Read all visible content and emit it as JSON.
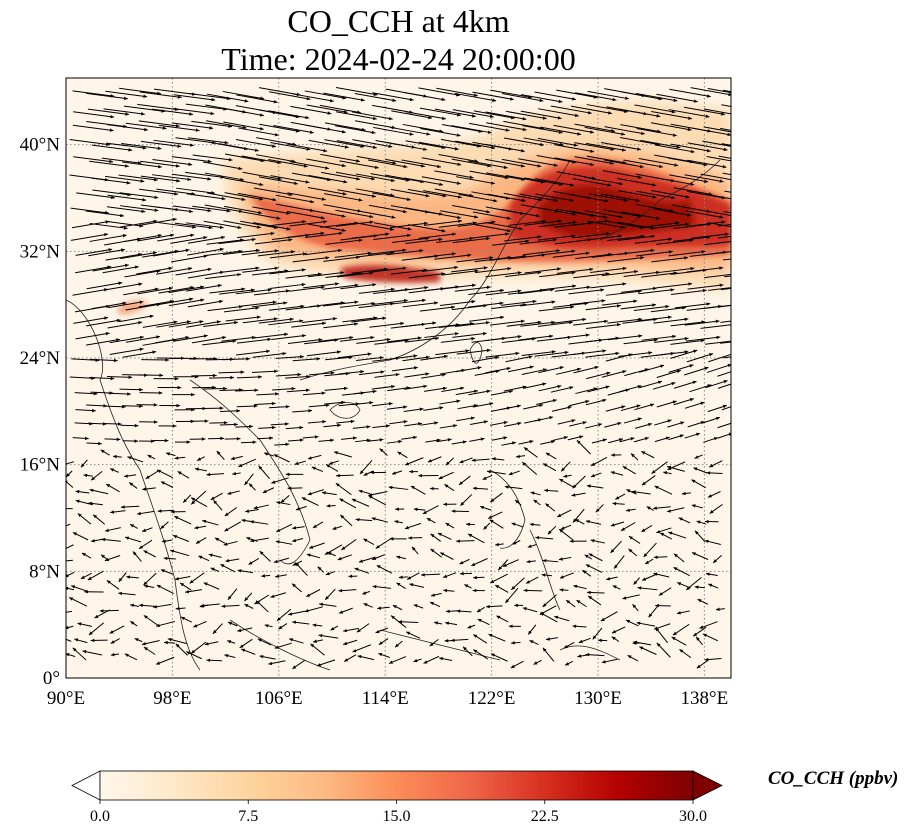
{
  "title_line1": "CO_CCH at 4km",
  "title_line2": "Time: 2024-02-24 20:00:00",
  "map": {
    "lon_range": [
      90,
      140
    ],
    "lat_range": [
      0,
      45
    ],
    "lon_ticks": [
      {
        "value": 90,
        "label": "90°E"
      },
      {
        "value": 98,
        "label": "98°E"
      },
      {
        "value": 106,
        "label": "106°E"
      },
      {
        "value": 114,
        "label": "114°E"
      },
      {
        "value": 122,
        "label": "122°E"
      },
      {
        "value": 130,
        "label": "130°E"
      },
      {
        "value": 138,
        "label": "138°E"
      }
    ],
    "lat_ticks": [
      {
        "value": 0,
        "label": "0°"
      },
      {
        "value": 8,
        "label": "8°N"
      },
      {
        "value": 16,
        "label": "16°N"
      },
      {
        "value": 24,
        "label": "24°N"
      },
      {
        "value": 32,
        "label": "32°N"
      },
      {
        "value": 40,
        "label": "40°N"
      }
    ],
    "gridlines": "dotted",
    "background_color": "#fff5e8",
    "vector_color": "#000000"
  },
  "colorbar": {
    "label": "CO_CCH (ppbv)",
    "min": 0.0,
    "max": 30.0,
    "extend": "both",
    "colormap": "OrRd",
    "ticks": [
      "0.0",
      "7.5",
      "15.0",
      "22.5",
      "30.0"
    ],
    "colors": [
      "#fff7ec",
      "#fee8c8",
      "#fdd49e",
      "#fdbb84",
      "#fc8d59",
      "#ef6548",
      "#d7301f",
      "#b30000",
      "#7f0000"
    ]
  }
}
